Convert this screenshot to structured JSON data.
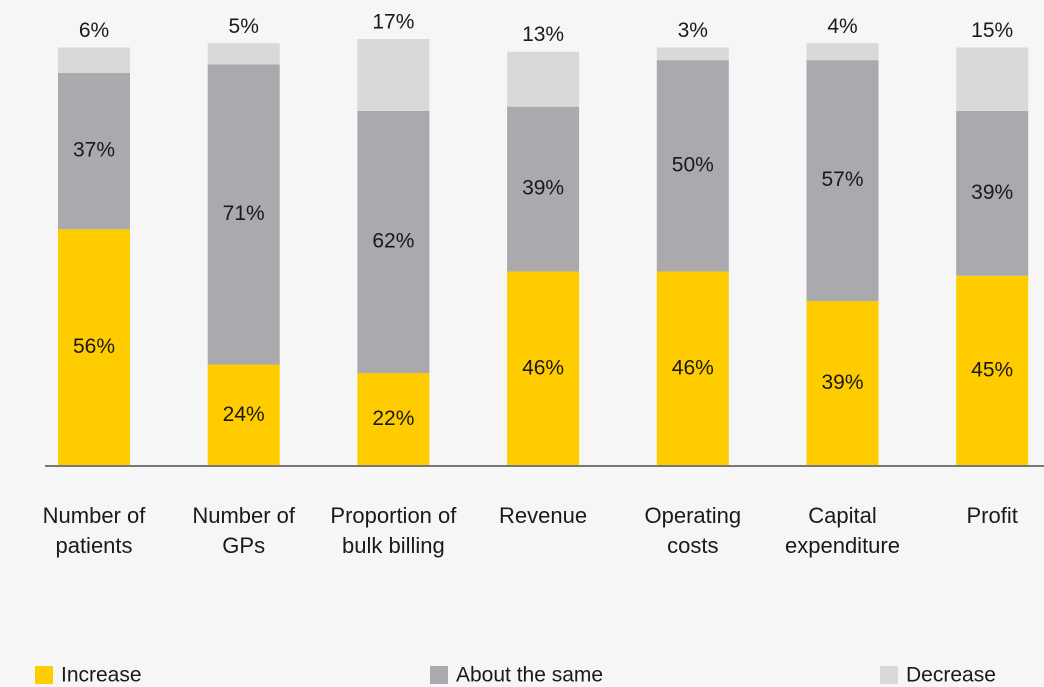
{
  "chart_data": {
    "type": "stacked_bar",
    "categories": [
      "Number of patients",
      "Number of GPs",
      "Proportion of bulk billing",
      "Revenue",
      "Operating costs",
      "Capital expenditure",
      "Profit"
    ],
    "series": [
      {
        "name": "Increase",
        "color": "#ffcc00",
        "values": [
          56,
          24,
          22,
          46,
          46,
          39,
          45
        ],
        "value_labels": [
          "56%",
          "24%",
          "22%",
          "46%",
          "46%",
          "39%",
          "45%"
        ]
      },
      {
        "name": "About the same",
        "color": "#a9a9ae",
        "values": [
          37,
          71,
          62,
          39,
          50,
          57,
          39
        ],
        "value_labels": [
          "37%",
          "71%",
          "62%",
          "39%",
          "50%",
          "57%",
          "39%"
        ]
      },
      {
        "name": "Decrease",
        "color": "#d9d9d9",
        "values": [
          6,
          5,
          17,
          13,
          3,
          4,
          15
        ],
        "value_labels": [
          "6%",
          "5%",
          "17%",
          "13%",
          "3%",
          "4%",
          "15%"
        ]
      }
    ]
  }
}
